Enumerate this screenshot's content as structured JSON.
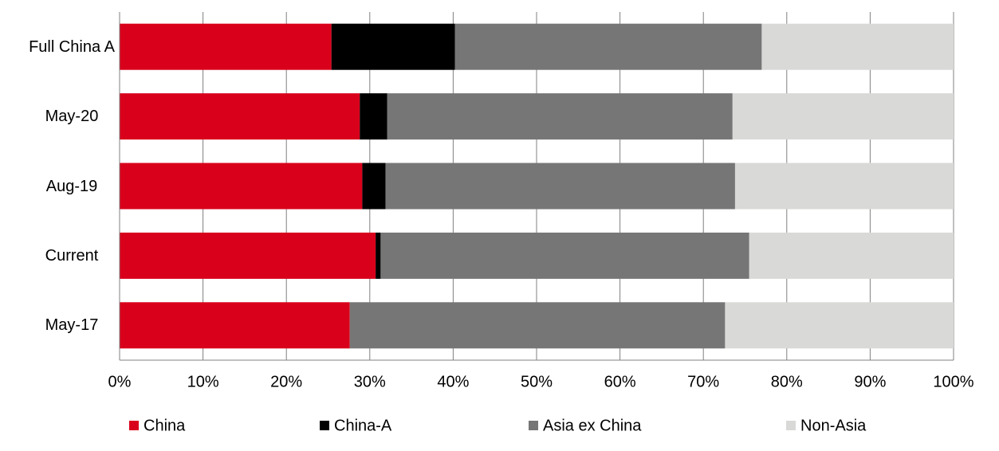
{
  "chart_data": {
    "type": "stacked-barh",
    "categories": [
      "Full China A",
      "May-20",
      "Aug-19",
      "Current",
      "May-17"
    ],
    "series": [
      {
        "name": "China",
        "color": "#d9001b",
        "values": [
          25.4,
          28.8,
          29.1,
          30.7,
          27.6
        ]
      },
      {
        "name": "China-A",
        "color": "#000000",
        "values": [
          14.8,
          3.3,
          2.8,
          0.6,
          0
        ]
      },
      {
        "name": "Asia ex China",
        "color": "#767676",
        "values": [
          36.8,
          41.4,
          41.9,
          44.2,
          45.0
        ]
      },
      {
        "name": "Non-Asia",
        "color": "#d9d9d7",
        "values": [
          23.0,
          26.5,
          26.2,
          24.5,
          27.4
        ]
      }
    ],
    "xlim": [
      0,
      100
    ],
    "xticks": [
      {
        "value": 0,
        "label": "0%"
      },
      {
        "value": 10,
        "label": "10%"
      },
      {
        "value": 20,
        "label": "20%"
      },
      {
        "value": 30,
        "label": "30%"
      },
      {
        "value": 40,
        "label": "40%"
      },
      {
        "value": 50,
        "label": "50%"
      },
      {
        "value": 60,
        "label": "60%"
      },
      {
        "value": 70,
        "label": "70%"
      },
      {
        "value": 80,
        "label": "80%"
      },
      {
        "value": 90,
        "label": "90%"
      },
      {
        "value": 100,
        "label": "100%"
      }
    ],
    "grid": true,
    "legend": "bottom"
  }
}
